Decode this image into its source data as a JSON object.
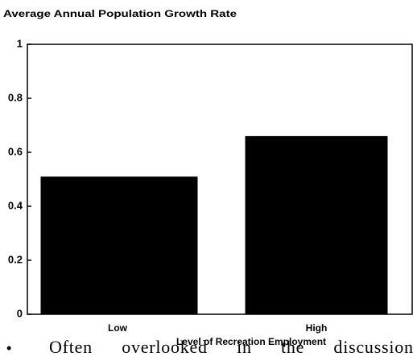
{
  "chart_data": {
    "type": "bar",
    "title": "Average Annual Population Growth Rate",
    "categories": [
      "Low",
      "High"
    ],
    "values": [
      0.51,
      0.66
    ],
    "color": "#000000",
    "x_label": "Level of Recreation Employment",
    "ylim": [
      0,
      1
    ],
    "yticks": [
      0,
      0.2,
      0.4,
      0.6,
      0.8,
      1
    ],
    "grid": false
  },
  "bullet_text": "Often overlooked in the discussion"
}
